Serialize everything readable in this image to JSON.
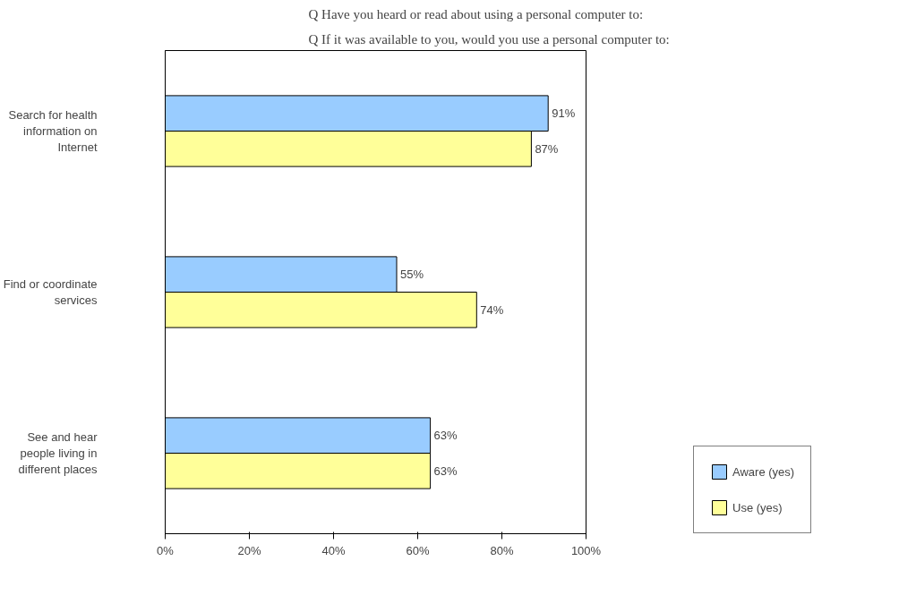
{
  "chart_data": {
    "type": "bar",
    "orientation": "horizontal",
    "title": "Q Have you heard or read about using a personal computer to:",
    "subtitle": "Q If it was available to you, would you use a personal computer to:",
    "categories": [
      "Search for health information on Internet",
      "Find or coordinate services",
      "See and hear people living in different places"
    ],
    "series": [
      {
        "name": "Aware (yes)",
        "color": "#99ccff",
        "values": [
          91,
          55,
          63
        ],
        "value_labels": [
          "91%",
          "55%",
          "63%"
        ]
      },
      {
        "name": "Use (yes)",
        "color": "#ffff99",
        "values": [
          87,
          74,
          63
        ],
        "value_labels": [
          "87%",
          "74%",
          "63%"
        ]
      }
    ],
    "xlim": [
      0,
      100
    ],
    "xticks": [
      {
        "value": 0,
        "label": "0%"
      },
      {
        "value": 20,
        "label": "20%"
      },
      {
        "value": 40,
        "label": "40%"
      },
      {
        "value": 60,
        "label": "60%"
      },
      {
        "value": 80,
        "label": "80%"
      },
      {
        "value": 100,
        "label": "100%"
      }
    ],
    "grid": false,
    "legend": "bottom right"
  }
}
